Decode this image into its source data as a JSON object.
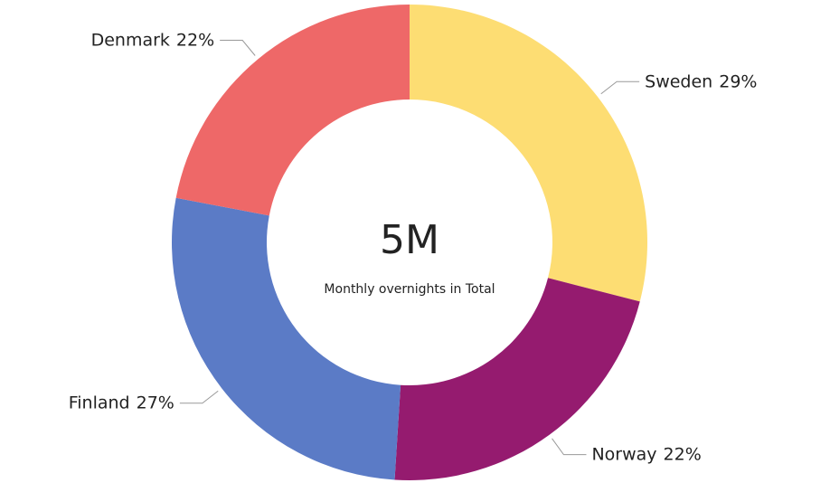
{
  "chart_data": {
    "type": "donut",
    "categories": [
      "Sweden",
      "Norway",
      "Finland",
      "Denmark"
    ],
    "values": [
      29,
      22,
      27,
      22
    ],
    "value_labels": [
      "29%",
      "22%",
      "27%",
      "22%"
    ],
    "colors": [
      "#fddd73",
      "#951b6f",
      "#5b7bc6",
      "#ee6868"
    ],
    "center_value": "5M",
    "center_label": "Monthly overnights in Total"
  }
}
